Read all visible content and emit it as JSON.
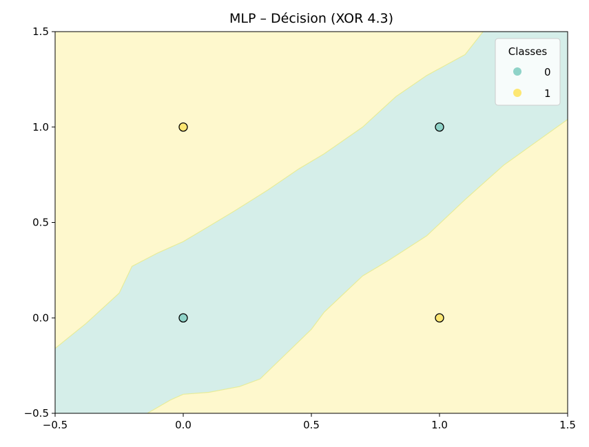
{
  "chart_data": {
    "type": "scatter",
    "title": "MLP – Décision (XOR 4.3)",
    "xlabel": "",
    "ylabel": "",
    "xlim": [
      -0.5,
      1.5
    ],
    "ylim": [
      -0.5,
      1.5
    ],
    "x_ticks": [
      -0.5,
      0.0,
      0.5,
      1.0,
      1.5
    ],
    "x_tick_labels": [
      "−0.5",
      "0.0",
      "0.5",
      "1.0",
      "1.5"
    ],
    "y_ticks": [
      -0.5,
      0.0,
      0.5,
      1.0,
      1.5
    ],
    "y_tick_labels": [
      "−0.5",
      "0.0",
      "0.5",
      "1.0",
      "1.5"
    ],
    "grid": false,
    "colors": {
      "class0_region": "#d5eee9",
      "class1_region": "#fef8cd",
      "class0_point": "#8fd3c8",
      "class1_point": "#fde772",
      "boundary": "#e6ec9a"
    },
    "decision_regions": {
      "class_inside_band": "0",
      "class_outside_band": "1",
      "upper_boundary": [
        [
          -0.5,
          -0.16
        ],
        [
          -0.38,
          -0.03
        ],
        [
          -0.25,
          0.13
        ],
        [
          -0.2,
          0.27
        ],
        [
          -0.1,
          0.34
        ],
        [
          0.0,
          0.4
        ],
        [
          0.1,
          0.48
        ],
        [
          0.2,
          0.56
        ],
        [
          0.33,
          0.67
        ],
        [
          0.45,
          0.78
        ],
        [
          0.55,
          0.86
        ],
        [
          0.7,
          1.0
        ],
        [
          0.83,
          1.16
        ],
        [
          0.95,
          1.27
        ],
        [
          1.1,
          1.38
        ],
        [
          1.17,
          1.5
        ]
      ],
      "lower_boundary": [
        [
          -0.14,
          -0.5
        ],
        [
          -0.05,
          -0.43
        ],
        [
          0.0,
          -0.4
        ],
        [
          0.1,
          -0.39
        ],
        [
          0.22,
          -0.36
        ],
        [
          0.3,
          -0.32
        ],
        [
          0.4,
          -0.19
        ],
        [
          0.5,
          -0.06
        ],
        [
          0.55,
          0.03
        ],
        [
          0.7,
          0.22
        ],
        [
          0.8,
          0.3
        ],
        [
          0.95,
          0.43
        ],
        [
          1.1,
          0.62
        ],
        [
          1.25,
          0.8
        ],
        [
          1.5,
          1.04
        ]
      ]
    },
    "legend": {
      "title": "Classes",
      "placement": "top-right",
      "entries": [
        {
          "label": "0",
          "color": "#8fd3c8"
        },
        {
          "label": "1",
          "color": "#fde772"
        }
      ]
    },
    "points": [
      {
        "x": 0.0,
        "y": 0.0,
        "class": "0"
      },
      {
        "x": 0.0,
        "y": 1.0,
        "class": "1"
      },
      {
        "x": 1.0,
        "y": 0.0,
        "class": "1"
      },
      {
        "x": 1.0,
        "y": 1.0,
        "class": "0"
      }
    ]
  }
}
